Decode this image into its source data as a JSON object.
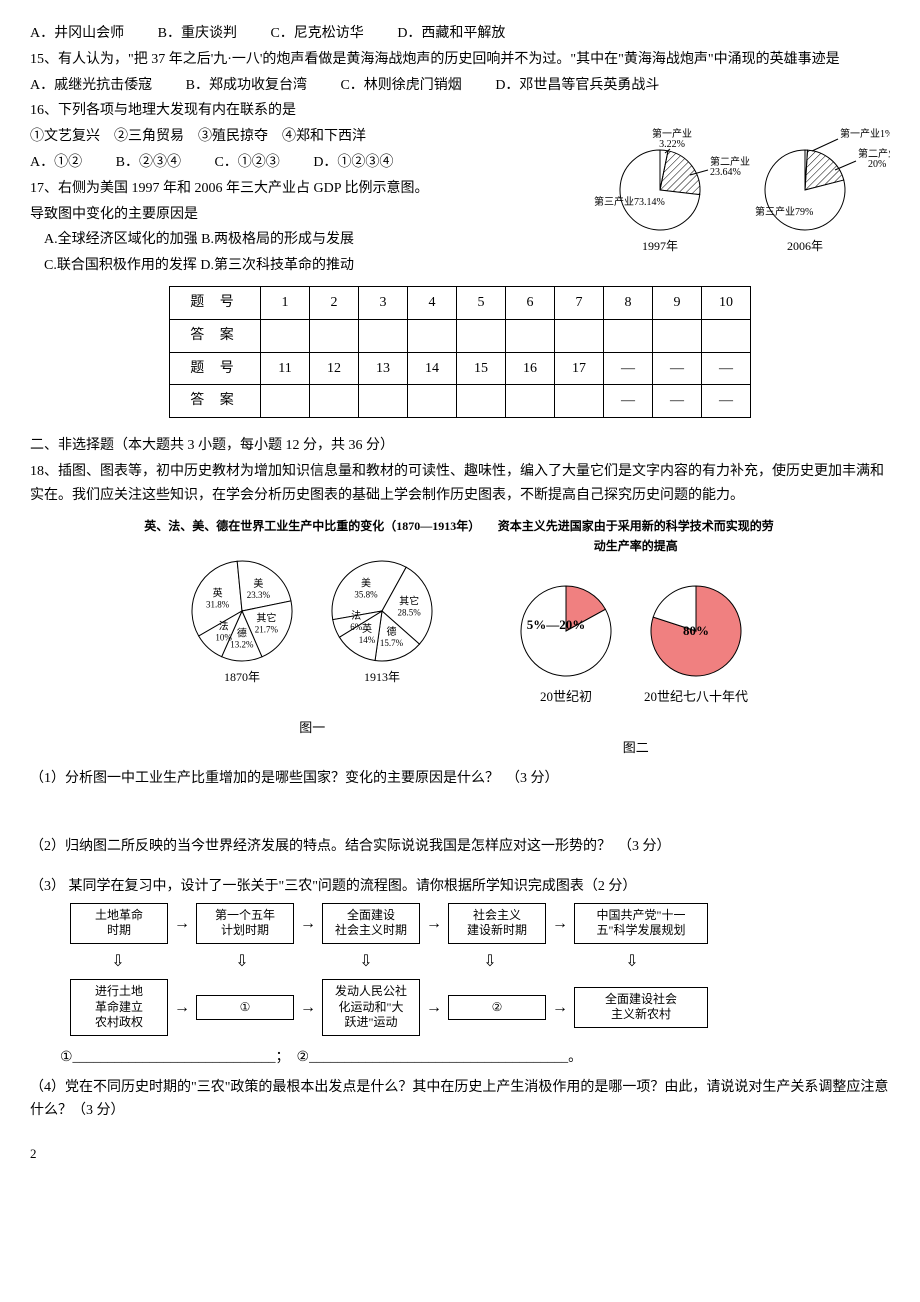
{
  "q14_options": {
    "A": "A．井冈山会师",
    "B": "B．重庆谈判",
    "C": "C．尼克松访华",
    "D": "D．西藏和平解放"
  },
  "q15": {
    "stem": "15、有人认为，\"把 37 年之后'九·一八'的炮声看做是黄海海战炮声的历史回响并不为过。\"其中在\"黄海海战炮声\"中涌现的英雄事迹是",
    "opts": {
      "A": "A．戚继光抗击倭寇",
      "B": "B．郑成功收复台湾",
      "C": "C．林则徐虎门销烟",
      "D": "D．邓世昌等官兵英勇战斗"
    }
  },
  "q16": {
    "stem": "16、下列各项与地理大发现有内在联系的是",
    "items": "①文艺复兴　②三角贸易　③殖民掠夺　④郑和下西洋",
    "opts": {
      "A": "A．①②",
      "B": "B．②③④",
      "C": "C．①②③",
      "D": "D．①②③④"
    }
  },
  "q17": {
    "stem1": "17、右侧为美国 1997 年和 2006 年三大产业占 GDP 比例示意图。",
    "stem2": "导致图中变化的主要原因是",
    "optA": "A.全球经济区域化的加强",
    "optB": "B.两极格局的形成与发展",
    "optC": "C.联合国积极作用的发挥",
    "optD": "D.第三次科技革命的推动"
  },
  "gdp_chart": {
    "pie1": {
      "year": "1997年",
      "slices": [
        {
          "label": "第一产业",
          "pct_label": "3.22%",
          "value": 3.22,
          "fill": "#ffffff"
        },
        {
          "label": "第二产业",
          "pct_label": "23.64%",
          "value": 23.64,
          "fill": "hatch"
        },
        {
          "label": "第三产业",
          "pct_label": "73.14%",
          "label_inline": "第三产业73.14%",
          "value": 73.14,
          "fill": "#ffffff"
        }
      ]
    },
    "pie2": {
      "year": "2006年",
      "slices": [
        {
          "label": "第一产业",
          "pct_label": "1%",
          "label_inline": "第一产业1%",
          "value": 1,
          "fill": "#ffffff"
        },
        {
          "label": "第二产业",
          "pct_label": "20%",
          "value": 20,
          "fill": "hatch"
        },
        {
          "label": "第三产业",
          "pct_label": "79%",
          "label_inline": "第三产业79%",
          "value": 79,
          "fill": "#ffffff"
        }
      ]
    },
    "radius": 40,
    "stroke": "#000000"
  },
  "answer_table": {
    "row1_label": "题 号",
    "row2_label": "答 案",
    "nums1": [
      "1",
      "2",
      "3",
      "4",
      "5",
      "6",
      "7",
      "8",
      "9",
      "10"
    ],
    "nums2": [
      "11",
      "12",
      "13",
      "14",
      "15",
      "16",
      "17",
      "—",
      "—",
      "—"
    ],
    "blanks2": [
      "",
      "",
      "",
      "",
      "",
      "",
      "",
      "—",
      "—",
      "—"
    ]
  },
  "section2": {
    "title": "二、非选择题（本大题共 3 小题，每小题 12 分，共 36 分）",
    "q18_intro": "18、插图、图表等，初中历史教材为增加知识信息量和教材的可读性、趣味性，编入了大量它们是文字内容的有力补充，使历史更加丰满和实在。我们应关注这些知识，在学会分析历史图表的基础上学会制作历史图表，不断提高自己探究历史问题的能力。"
  },
  "fig1": {
    "title": "英、法、美、德在世界工业生产中比重的变化（1870—1913年）",
    "pie_1870": {
      "year": "1870年",
      "slices": [
        {
          "label": "英",
          "pct": "31.8%",
          "value": 31.8
        },
        {
          "label": "美",
          "pct": "23.3%",
          "value": 23.3
        },
        {
          "label": "其它",
          "pct": "21.7%",
          "value": 21.7
        },
        {
          "label": "德",
          "pct": "13.2%",
          "value": 13.2
        },
        {
          "label": "法",
          "pct": "10%",
          "value": 10
        }
      ]
    },
    "pie_1913": {
      "year": "1913年",
      "slices": [
        {
          "label": "美",
          "pct": "35.8%",
          "value": 35.8
        },
        {
          "label": "其它",
          "pct": "28.5%",
          "value": 28.5
        },
        {
          "label": "德",
          "pct": "15.7%",
          "value": 15.7
        },
        {
          "label": "英",
          "pct": "14%",
          "value": 14
        },
        {
          "label": "法",
          "pct": "6%",
          "value": 6
        }
      ]
    },
    "caption": "图一"
  },
  "fig2": {
    "title": "资本主义先进国家由于采用新的科学技术而实现的劳动生产率的提高",
    "pie_left": {
      "label_top": "5%—20%",
      "label_bottom": "",
      "year": "20世纪初",
      "red_value": 17,
      "red_color": "#f08080"
    },
    "pie_right": {
      "label": "80%",
      "year": "20世纪七八十年代",
      "red_value": 80,
      "red_color": "#f08080"
    },
    "caption": "图二"
  },
  "q18_parts": {
    "p1": "（1）分析图一中工业生产比重增加的是哪些国家？变化的主要原因是什么？　（3 分）",
    "p2": "（2）归纳图二所反映的当今世界经济发展的特点。结合实际说说我国是怎样应对这一形势的？　（3 分）",
    "p3": "（3） 某同学在复习中，设计了一张关于\"三农\"问题的流程图。请你根据所学知识完成图表（2 分）",
    "blank_line": "①_____________________________；　②_____________________________________。",
    "p4": "（4）党在不同历史时期的\"三农\"政策的最根本出发点是什么？其中在历史上产生消极作用的是哪一项？由此，请说说对生产关系调整应注意什么？（3 分）"
  },
  "flowchart": {
    "row1": [
      {
        "text": "土地革命\n时期"
      },
      {
        "text": "第一个五年\n计划时期"
      },
      {
        "text": "全面建设\n社会主义时期"
      },
      {
        "text": "社会主义\n建设新时期"
      },
      {
        "text": "中国共产党\"十一\n五\"科学发展规划",
        "wide": true
      }
    ],
    "row2": [
      {
        "text": "进行土地\n革命建立\n农村政权"
      },
      {
        "text": "①"
      },
      {
        "text": "发动人民公社\n化运动和\"大\n跃进\"运动"
      },
      {
        "text": "②"
      },
      {
        "text": "全面建设社会\n主义新农村",
        "wide": true
      }
    ]
  },
  "page_num": "2"
}
